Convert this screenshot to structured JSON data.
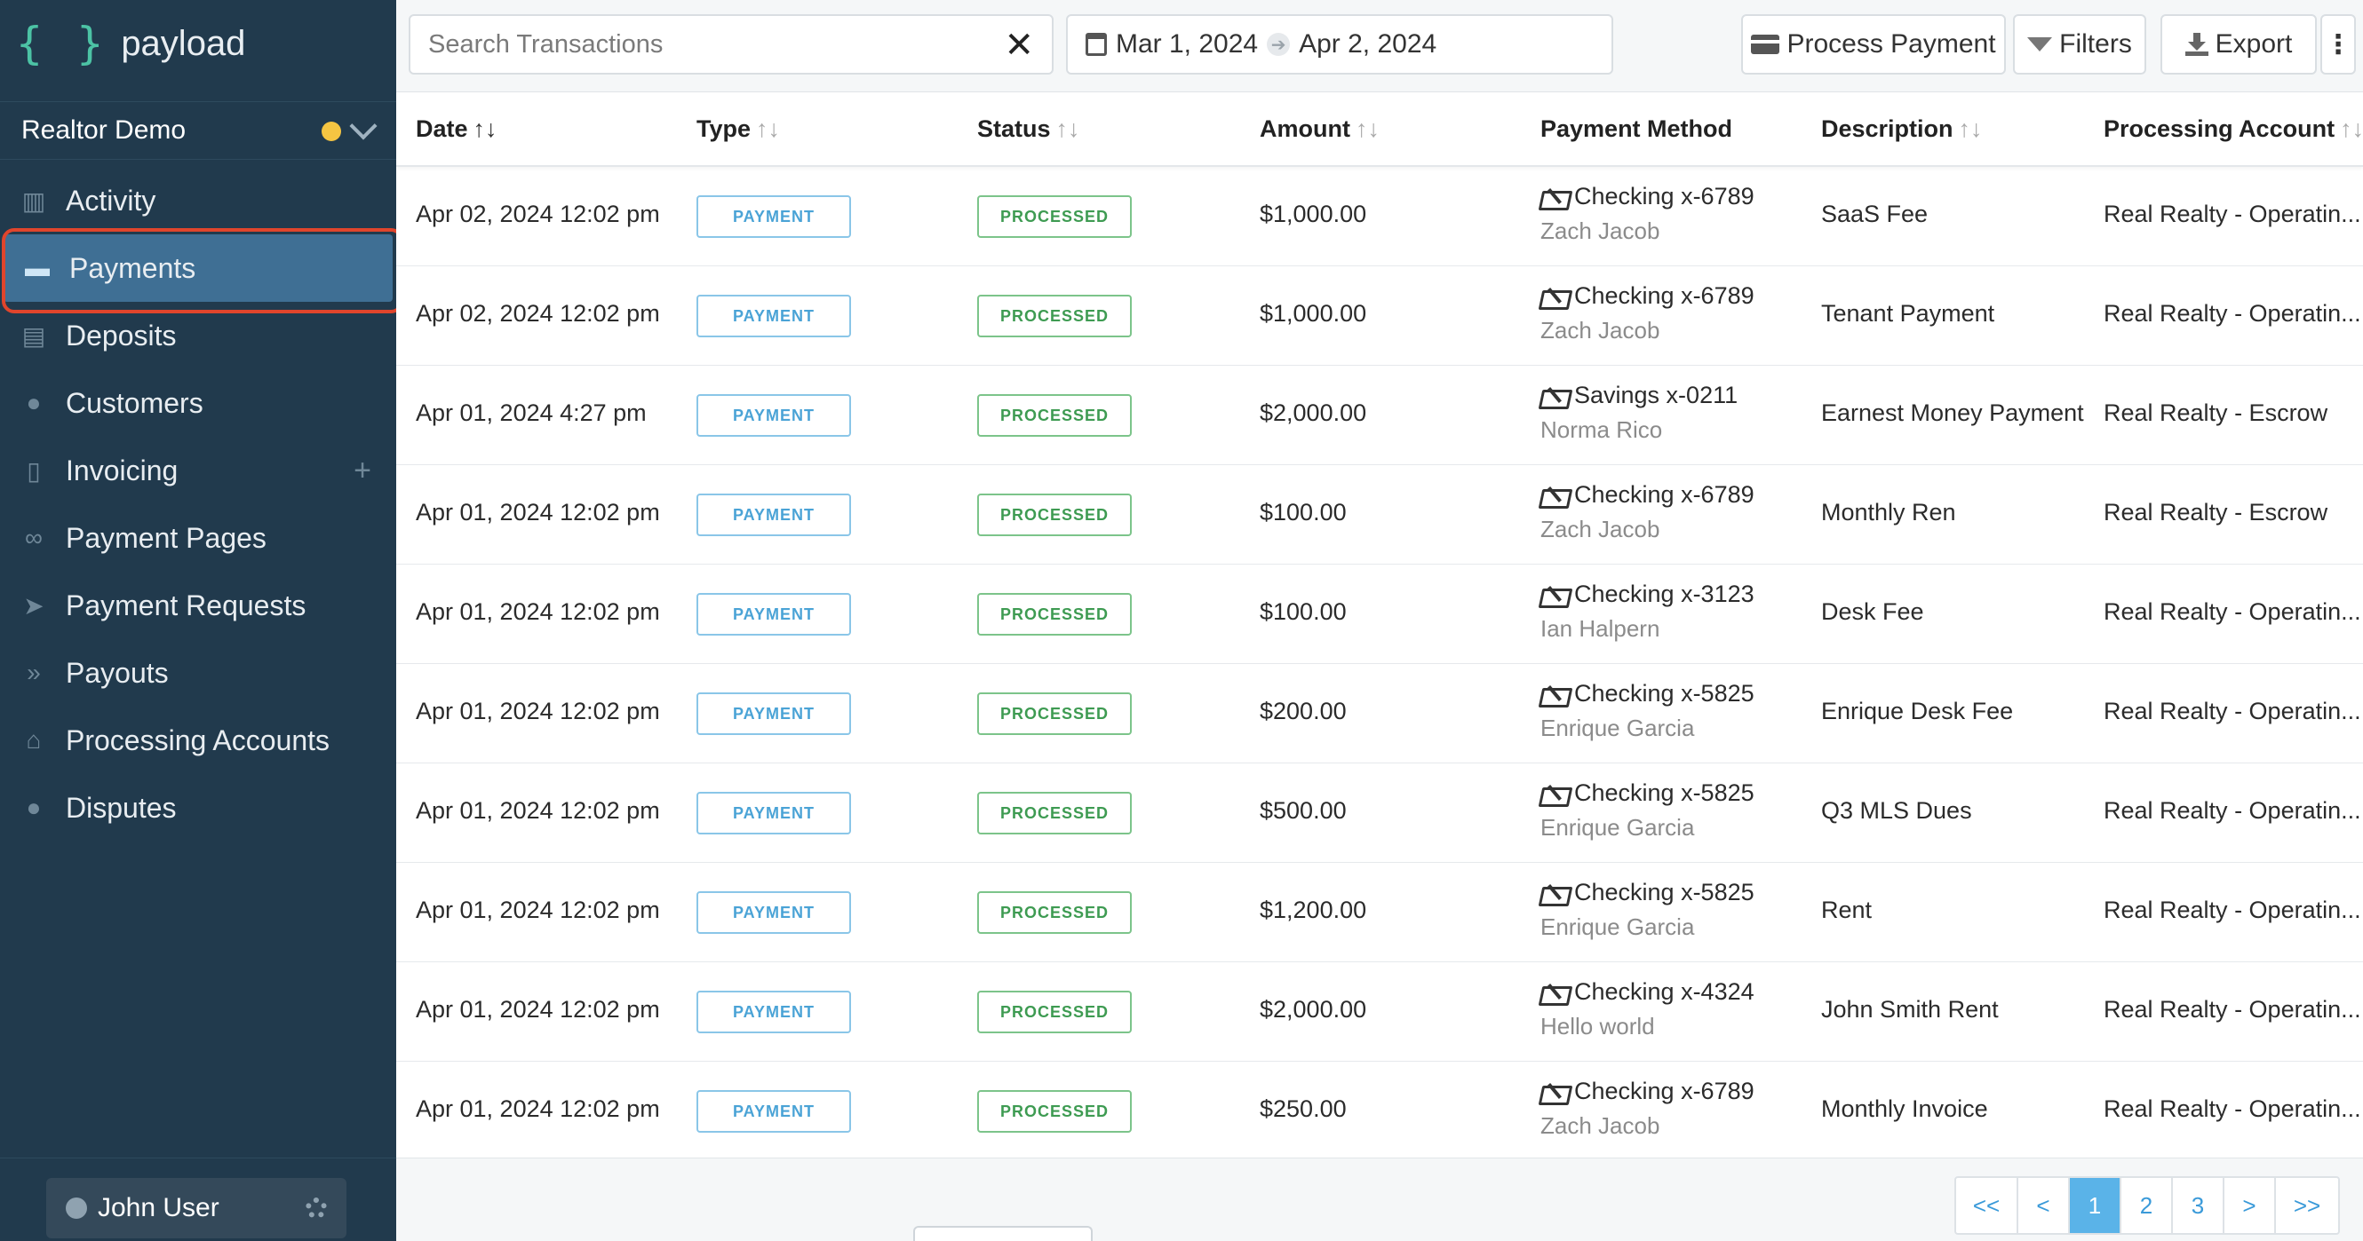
{
  "brand": {
    "name": "payload",
    "braces": "{ }"
  },
  "org": {
    "name": "Realtor Demo",
    "status_color": "#f5c542"
  },
  "nav": {
    "items": [
      {
        "label": "Activity",
        "icon": "bar-chart-icon"
      },
      {
        "label": "Payments",
        "icon": "credit-card-icon",
        "active": true
      },
      {
        "label": "Deposits",
        "icon": "cash-icon"
      },
      {
        "label": "Customers",
        "icon": "users-icon"
      },
      {
        "label": "Invoicing",
        "icon": "document-icon",
        "has_add": true
      },
      {
        "label": "Payment Pages",
        "icon": "link-icon"
      },
      {
        "label": "Payment Requests",
        "icon": "paper-plane-icon"
      },
      {
        "label": "Payouts",
        "icon": "double-chevron-icon"
      },
      {
        "label": "Processing Accounts",
        "icon": "bank-icon"
      },
      {
        "label": "Disputes",
        "icon": "alert-circle-icon"
      }
    ],
    "add_symbol": "+"
  },
  "user": {
    "name": "John User"
  },
  "toolbar": {
    "search_placeholder": "Search Transactions",
    "clear_symbol": "✕",
    "date_from": "Mar 1, 2024",
    "date_to": "Apr 2, 2024",
    "date_arrow": "➔",
    "process_payment": "Process Payment",
    "filters": "Filters",
    "export": "Export",
    "more": "⋮"
  },
  "table": {
    "columns": [
      {
        "label": "Date",
        "sort": "↑↓",
        "sort_active": true
      },
      {
        "label": "Type",
        "sort": "↑↓"
      },
      {
        "label": "Status",
        "sort": "↑↓"
      },
      {
        "label": "Amount",
        "sort": "↑↓"
      },
      {
        "label": "Payment Method",
        "sort": ""
      },
      {
        "label": "Description",
        "sort": "↑↓"
      },
      {
        "label": "Processing Account",
        "sort": "↑↓"
      }
    ],
    "rows": [
      {
        "date": "Apr 02, 2024 12:02 pm",
        "type": "PAYMENT",
        "status": "PROCESSED",
        "amount": "$1,000.00",
        "method": "Checking x-6789",
        "payer": "Zach Jacob",
        "description": "SaaS Fee",
        "account": "Real Realty - Operatin..."
      },
      {
        "date": "Apr 02, 2024 12:02 pm",
        "type": "PAYMENT",
        "status": "PROCESSED",
        "amount": "$1,000.00",
        "method": "Checking x-6789",
        "payer": "Zach Jacob",
        "description": "Tenant Payment",
        "account": "Real Realty - Operatin..."
      },
      {
        "date": "Apr 01, 2024 4:27 pm",
        "type": "PAYMENT",
        "status": "PROCESSED",
        "amount": "$2,000.00",
        "method": "Savings x-0211",
        "payer": "Norma Rico",
        "description": "Earnest Money Payment",
        "account": "Real Realty - Escrow"
      },
      {
        "date": "Apr 01, 2024 12:02 pm",
        "type": "PAYMENT",
        "status": "PROCESSED",
        "amount": "$100.00",
        "method": "Checking x-6789",
        "payer": "Zach Jacob",
        "description": "Monthly Ren",
        "account": "Real Realty - Escrow"
      },
      {
        "date": "Apr 01, 2024 12:02 pm",
        "type": "PAYMENT",
        "status": "PROCESSED",
        "amount": "$100.00",
        "method": "Checking x-3123",
        "payer": "Ian Halpern",
        "description": "Desk Fee",
        "account": "Real Realty - Operatin..."
      },
      {
        "date": "Apr 01, 2024 12:02 pm",
        "type": "PAYMENT",
        "status": "PROCESSED",
        "amount": "$200.00",
        "method": "Checking x-5825",
        "payer": "Enrique Garcia",
        "description": "Enrique Desk Fee",
        "account": "Real Realty - Operatin..."
      },
      {
        "date": "Apr 01, 2024 12:02 pm",
        "type": "PAYMENT",
        "status": "PROCESSED",
        "amount": "$500.00",
        "method": "Checking x-5825",
        "payer": "Enrique Garcia",
        "description": "Q3 MLS Dues",
        "account": "Real Realty - Operatin..."
      },
      {
        "date": "Apr 01, 2024 12:02 pm",
        "type": "PAYMENT",
        "status": "PROCESSED",
        "amount": "$1,200.00",
        "method": "Checking x-5825",
        "payer": "Enrique Garcia",
        "description": "Rent",
        "account": "Real Realty - Operatin..."
      },
      {
        "date": "Apr 01, 2024 12:02 pm",
        "type": "PAYMENT",
        "status": "PROCESSED",
        "amount": "$2,000.00",
        "method": "Checking x-4324",
        "payer": "Hello world",
        "description": "John Smith Rent",
        "account": "Real Realty - Operatin..."
      },
      {
        "date": "Apr 01, 2024 12:02 pm",
        "type": "PAYMENT",
        "status": "PROCESSED",
        "amount": "$250.00",
        "method": "Checking x-6789",
        "payer": "Zach Jacob",
        "description": "Monthly Invoice",
        "account": "Real Realty - Operatin..."
      }
    ]
  },
  "pagination": {
    "first": "<<",
    "prev": "<",
    "pages": [
      "1",
      "2",
      "3"
    ],
    "current": "1",
    "next": ">",
    "last": ">>"
  },
  "colors": {
    "sidebar_bg": "#213a4d",
    "active_nav": "#3f6f94",
    "highlight": "#e0452c",
    "type_badge": "#4aa3d6",
    "status_badge": "#3e9b52",
    "pager_active": "#5ab3e8"
  }
}
